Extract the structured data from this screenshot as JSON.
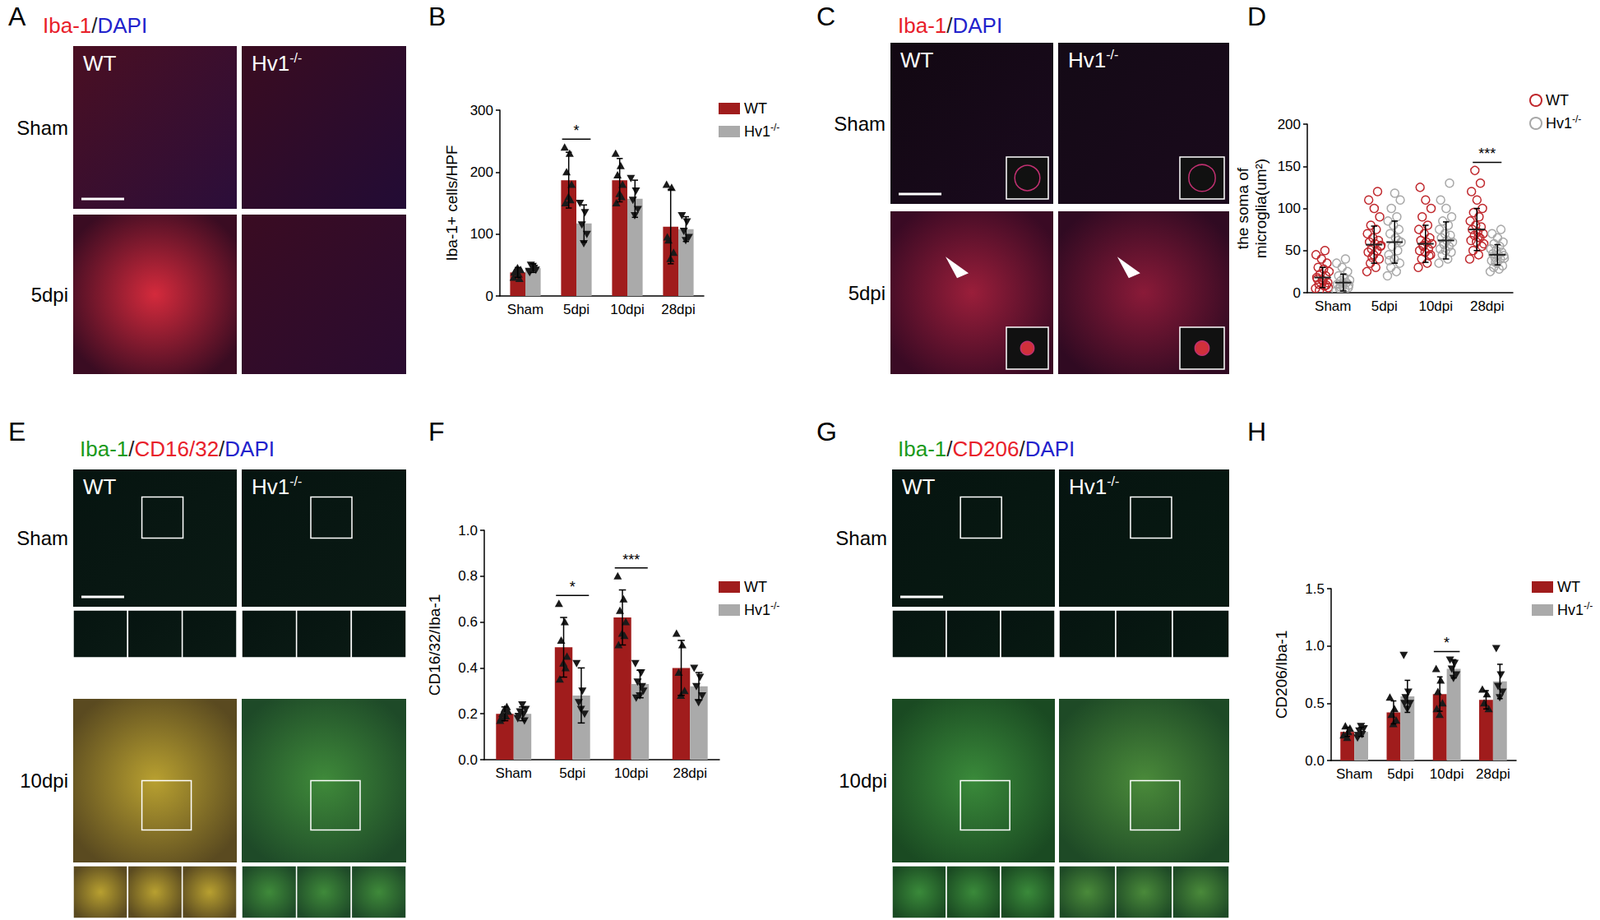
{
  "image_panels": [
    {
      "letter": "A",
      "stain": [
        {
          "text": "Iba-1",
          "color": "#e8202a"
        },
        {
          "text": "/",
          "color": "#222222"
        },
        {
          "text": "DAPI",
          "color": "#2222cc"
        }
      ],
      "columns": [
        "WT",
        "Hv1-/-"
      ],
      "rows": [
        "Sham",
        "5dpi"
      ]
    },
    {
      "letter": "C",
      "stain": [
        {
          "text": "Iba-1",
          "color": "#e8202a"
        },
        {
          "text": "/",
          "color": "#222222"
        },
        {
          "text": "DAPI",
          "color": "#2222cc"
        }
      ],
      "columns": [
        "WT",
        "Hv1-/-"
      ],
      "rows": [
        "Sham",
        "5dpi"
      ]
    },
    {
      "letter": "E",
      "stain": [
        {
          "text": "Iba-1",
          "color": "#1a9a1a"
        },
        {
          "text": "/",
          "color": "#222222"
        },
        {
          "text": "CD16/32",
          "color": "#e8202a"
        },
        {
          "text": "/",
          "color": "#222222"
        },
        {
          "text": "DAPI",
          "color": "#2222cc"
        }
      ],
      "columns": [
        "WT",
        "Hv1-/-"
      ],
      "rows": [
        "Sham",
        "10dpi"
      ]
    },
    {
      "letter": "G",
      "stain": [
        {
          "text": "Iba-1",
          "color": "#1a9a1a"
        },
        {
          "text": "/",
          "color": "#222222"
        },
        {
          "text": "CD206",
          "color": "#e8202a"
        },
        {
          "text": "/",
          "color": "#222222"
        },
        {
          "text": "DAPI",
          "color": "#2222cc"
        }
      ],
      "columns": [
        "WT",
        "Hv1-/-"
      ],
      "rows": [
        "Sham",
        "10dpi"
      ]
    }
  ],
  "chart_data": [
    {
      "panel": "B",
      "type": "bar",
      "categories": [
        "Sham",
        "5dpi",
        "10dpi",
        "28dpi"
      ],
      "y_label": "Iba-1+ cells/HPF",
      "ylim": [
        0,
        300
      ],
      "yticks": [
        0,
        100,
        200,
        300
      ],
      "grid": false,
      "legend": "upper right",
      "series": [
        {
          "name": "WT",
          "color": "#a01c1c",
          "marker": "triangle",
          "values": [
            38,
            187,
            187,
            112
          ],
          "errors": [
            8,
            45,
            35,
            60
          ],
          "points": [
            [
              30,
              35,
              40,
              42,
              45,
              38,
              28
            ],
            [
              240,
              230,
              200,
              180,
              160,
              150,
              155
            ],
            [
              230,
              210,
              195,
              180,
              165,
              150,
              160
            ],
            [
              180,
              175,
              90,
              70,
              60,
              95
            ]
          ]
        },
        {
          "name": "Hv1-/-",
          "color": "#aaaaaa",
          "marker": "triangle-down",
          "values": [
            45,
            117,
            157,
            108
          ],
          "errors": [
            7,
            30,
            30,
            20
          ],
          "points": [
            [
              40,
              45,
              50,
              42,
              48,
              38
            ],
            [
              150,
              135,
              115,
              100,
              85
            ],
            [
              190,
              170,
              155,
              140,
              130
            ],
            [
              130,
              120,
              105,
              95,
              90
            ]
          ]
        }
      ],
      "annotations": [
        {
          "category": "5dpi",
          "text": "*"
        }
      ]
    },
    {
      "panel": "D",
      "type": "scatter",
      "categories": [
        "Sham",
        "5dpi",
        "10dpi",
        "28dpi"
      ],
      "y_label": "the soma of\nmicroglia(um²)",
      "ylim": [
        0,
        200
      ],
      "yticks": [
        0,
        50,
        100,
        150,
        200
      ],
      "grid": false,
      "legend": "upper right",
      "series": [
        {
          "name": "WT",
          "color": "#c0282d",
          "marker": "circle-open",
          "values": [
            [
              5,
              8,
              10,
              12,
              15,
              18,
              20,
              22,
              25,
              28,
              30,
              35,
              40,
              45,
              50,
              3,
              6,
              14,
              16,
              9
            ],
            [
              25,
              30,
              35,
              40,
              45,
              48,
              50,
              52,
              55,
              58,
              60,
              62,
              65,
              70,
              75,
              80,
              90,
              100,
              110,
              120,
              42,
              56
            ],
            [
              30,
              35,
              40,
              45,
              48,
              50,
              52,
              55,
              58,
              60,
              62,
              65,
              70,
              75,
              80,
              90,
              100,
              110,
              125,
              44,
              56
            ],
            [
              40,
              45,
              50,
              55,
              60,
              62,
              65,
              68,
              70,
              72,
              75,
              78,
              80,
              85,
              90,
              95,
              100,
              110,
              120,
              130,
              145,
              58,
              66
            ]
          ],
          "means": [
            18,
            57,
            58,
            75
          ],
          "errors": [
            12,
            22,
            22,
            25
          ]
        },
        {
          "name": "Hv1-/-",
          "color": "#a8a8a8",
          "marker": "circle-open",
          "values": [
            [
              2,
              4,
              5,
              6,
              8,
              10,
              12,
              14,
              15,
              18,
              20,
              25,
              30,
              35,
              40,
              7,
              9,
              11
            ],
            [
              20,
              25,
              30,
              35,
              40,
              45,
              50,
              55,
              60,
              65,
              70,
              75,
              80,
              85,
              90,
              100,
              110,
              118,
              38,
              62
            ],
            [
              35,
              40,
              45,
              48,
              50,
              52,
              55,
              58,
              60,
              62,
              65,
              68,
              70,
              75,
              80,
              85,
              90,
              100,
              110,
              130,
              57
            ],
            [
              25,
              28,
              30,
              32,
              35,
              38,
              40,
              42,
              44,
              45,
              46,
              48,
              50,
              52,
              55,
              58,
              60,
              65,
              70,
              75,
              36,
              41
            ]
          ],
          "means": [
            12,
            60,
            62,
            45
          ],
          "errors": [
            10,
            25,
            22,
            12
          ]
        }
      ],
      "annotations": [
        {
          "category": "28dpi",
          "text": "***"
        }
      ]
    },
    {
      "panel": "F",
      "type": "bar",
      "categories": [
        "Sham",
        "5dpi",
        "10dpi",
        "28dpi"
      ],
      "y_label": "CD16/32/Iba-1",
      "ylim": [
        0,
        1
      ],
      "yticks": [
        {
          "value": 0,
          "label": "0.0"
        },
        {
          "value": 0.2,
          "label": "0.2"
        },
        {
          "value": 0.4,
          "label": "0.4"
        },
        {
          "value": 0.6,
          "label": "0.6"
        },
        {
          "value": 0.8,
          "label": "0.8"
        },
        {
          "value": 1,
          "label": "1.0"
        }
      ],
      "grid": false,
      "legend": "upper right",
      "series": [
        {
          "name": "WT",
          "color": "#a01c1c",
          "marker": "triangle",
          "values": [
            0.2,
            0.49,
            0.62,
            0.4
          ],
          "errors": [
            0.03,
            0.13,
            0.12,
            0.12
          ],
          "points": [
            [
              0.17,
              0.19,
              0.2,
              0.21,
              0.22,
              0.18,
              0.23
            ],
            [
              0.68,
              0.6,
              0.52,
              0.45,
              0.42,
              0.35,
              0.4
            ],
            [
              0.8,
              0.7,
              0.65,
              0.6,
              0.55,
              0.5,
              0.54
            ],
            [
              0.55,
              0.5,
              0.38,
              0.3,
              0.28
            ]
          ]
        },
        {
          "name": "Hv1-/-",
          "color": "#aaaaaa",
          "marker": "triangle-down",
          "values": [
            0.2,
            0.28,
            0.33,
            0.32
          ],
          "errors": [
            0.03,
            0.12,
            0.06,
            0.06
          ],
          "points": [
            [
              0.18,
              0.2,
              0.21,
              0.22,
              0.24,
              0.19,
              0.17
            ],
            [
              0.42,
              0.3,
              0.25,
              0.2,
              0.22
            ],
            [
              0.42,
              0.38,
              0.34,
              0.3,
              0.28,
              0.27,
              0.32
            ],
            [
              0.4,
              0.36,
              0.32,
              0.28,
              0.25
            ]
          ]
        }
      ],
      "annotations": [
        {
          "category": "5dpi",
          "text": "*"
        },
        {
          "category": "10dpi",
          "text": "***"
        }
      ]
    },
    {
      "panel": "H",
      "type": "bar",
      "categories": [
        "Sham",
        "5dpi",
        "10dpi",
        "28dpi"
      ],
      "y_label": "CD206/Iba-1",
      "ylim": [
        0,
        1.5
      ],
      "yticks": [
        {
          "value": 0,
          "label": "0.0"
        },
        {
          "value": 0.5,
          "label": "0.5"
        },
        {
          "value": 1,
          "label": "1.0"
        },
        {
          "value": 1.5,
          "label": "1.5"
        }
      ],
      "grid": false,
      "legend": "upper right",
      "series": [
        {
          "name": "WT",
          "color": "#a01c1c",
          "marker": "triangle",
          "values": [
            0.25,
            0.42,
            0.58,
            0.53
          ],
          "errors": [
            0.04,
            0.1,
            0.15,
            0.08
          ],
          "points": [
            [
              0.22,
              0.25,
              0.3,
              0.28,
              0.2
            ],
            [
              0.55,
              0.45,
              0.4,
              0.35,
              0.32
            ],
            [
              0.8,
              0.7,
              0.6,
              0.5,
              0.4,
              0.45
            ],
            [
              0.62,
              0.58,
              0.5,
              0.45
            ]
          ]
        },
        {
          "name": "Hv1-/-",
          "color": "#aaaaaa",
          "marker": "triangle-down",
          "values": [
            0.25,
            0.56,
            0.8,
            0.69
          ],
          "errors": [
            0.04,
            0.14,
            0.08,
            0.15
          ],
          "points": [
            [
              0.2,
              0.23,
              0.26,
              0.28,
              0.3,
              0.22
            ],
            [
              0.92,
              0.6,
              0.55,
              0.5,
              0.45,
              0.5
            ],
            [
              0.88,
              0.85,
              0.8,
              0.75,
              0.72
            ],
            [
              0.98,
              0.75,
              0.65,
              0.6,
              0.55
            ]
          ]
        }
      ],
      "annotations": [
        {
          "category": "10dpi",
          "text": "*"
        }
      ]
    }
  ]
}
